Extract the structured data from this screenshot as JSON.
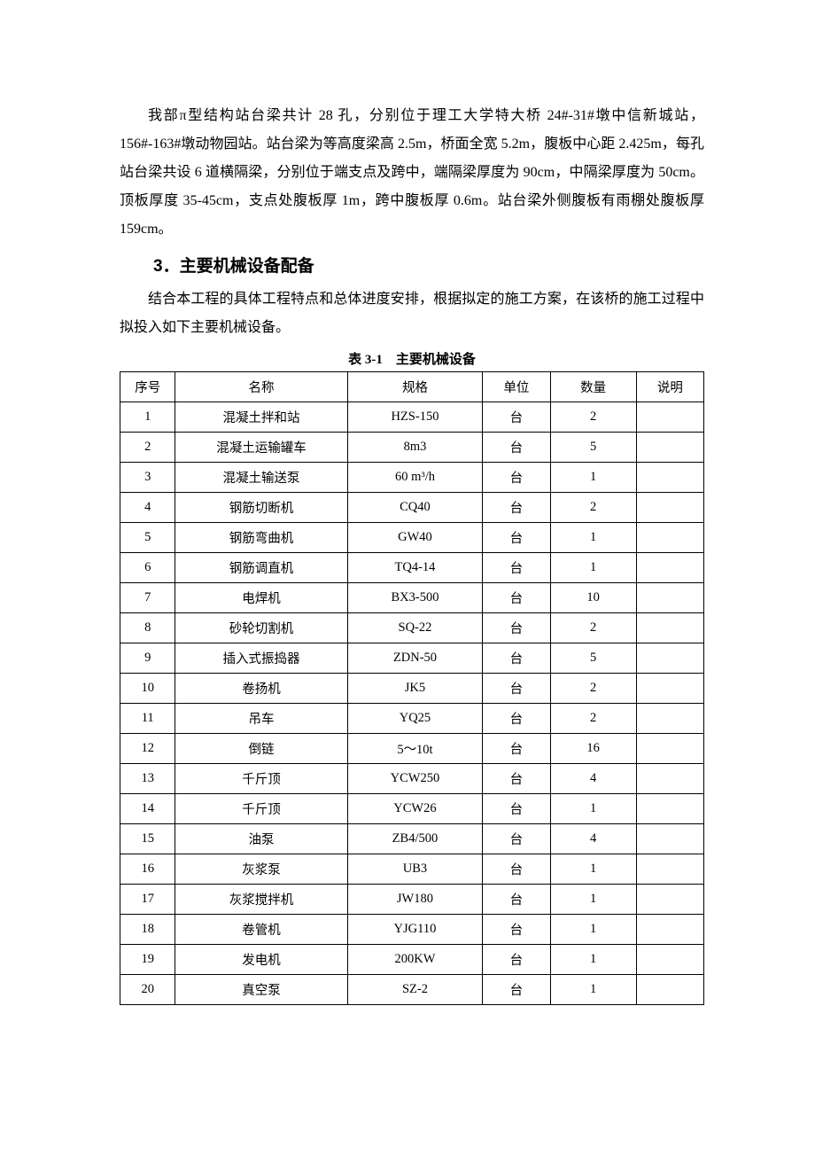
{
  "paragraphs": {
    "p1": "我部π型结构站台梁共计 28 孔，分别位于理工大学特大桥 24#-31#墩中信新城站，156#-163#墩动物园站。站台梁为等高度梁高 2.5m，桥面全宽 5.2m，腹板中心距 2.425m，每孔站台梁共设 6 道横隔梁，分别位于端支点及跨中，端隔梁厚度为 90cm，中隔梁厚度为 50cm。顶板厚度 35-45cm，支点处腹板厚 1m，跨中腹板厚 0.6m。站台梁外侧腹板有雨棚处腹板厚 159cm。",
    "p2": "结合本工程的具体工程特点和总体进度安排，根据拟定的施工方案，在该桥的施工过程中拟投入如下主要机械设备。"
  },
  "heading": "3．主要机械设备配备",
  "table": {
    "caption": "表 3-1　主要机械设备",
    "columns": [
      "序号",
      "名称",
      "规格",
      "单位",
      "数量",
      "说明"
    ],
    "column_widths_pct": [
      9,
      28,
      22,
      11,
      14,
      11
    ],
    "rows": [
      [
        "1",
        "混凝土拌和站",
        "HZS-150",
        "台",
        "2",
        ""
      ],
      [
        "2",
        "混凝土运输罐车",
        "8m3",
        "台",
        "5",
        ""
      ],
      [
        "3",
        "混凝土输送泵",
        "60 m³/h",
        "台",
        "1",
        ""
      ],
      [
        "4",
        "钢筋切断机",
        "CQ40",
        "台",
        "2",
        ""
      ],
      [
        "5",
        "钢筋弯曲机",
        "GW40",
        "台",
        "1",
        ""
      ],
      [
        "6",
        "钢筋调直机",
        "TQ4-14",
        "台",
        "1",
        ""
      ],
      [
        "7",
        "电焊机",
        "BX3-500",
        "台",
        "10",
        ""
      ],
      [
        "8",
        "砂轮切割机",
        "SQ-22",
        "台",
        "2",
        ""
      ],
      [
        "9",
        "插入式振捣器",
        "ZDN-50",
        "台",
        "5",
        ""
      ],
      [
        "10",
        "卷扬机",
        "JK5",
        "台",
        "2",
        ""
      ],
      [
        "11",
        "吊车",
        "YQ25",
        "台",
        "2",
        ""
      ],
      [
        "12",
        "倒链",
        "5～10t",
        "台",
        "16",
        ""
      ],
      [
        "13",
        "千斤顶",
        "YCW250",
        "台",
        "4",
        ""
      ],
      [
        "14",
        "千斤顶",
        "YCW26",
        "台",
        "1",
        ""
      ],
      [
        "15",
        "油泵",
        "ZB4/500",
        "台",
        "4",
        ""
      ],
      [
        "16",
        "灰浆泵",
        "UB3",
        "台",
        "1",
        ""
      ],
      [
        "17",
        "灰浆搅拌机",
        "JW180",
        "台",
        "1",
        ""
      ],
      [
        "18",
        "卷管机",
        "YJG110",
        "台",
        "1",
        ""
      ],
      [
        "19",
        "发电机",
        "200KW",
        "台",
        "1",
        ""
      ],
      [
        "20",
        "真空泵",
        "SZ-2",
        "台",
        "1",
        ""
      ]
    ],
    "border_color": "#000000",
    "fontsize": 14.5
  }
}
